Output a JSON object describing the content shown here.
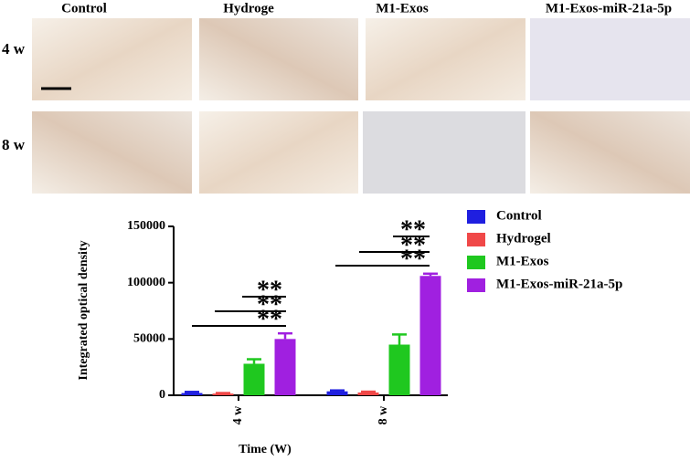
{
  "panels": {
    "columns": [
      "Control",
      "Hydroge",
      "M1-Exos",
      "M1-Exos-miR-21a-5p"
    ],
    "rows": [
      "4 w",
      "8 w"
    ]
  },
  "chart_data": {
    "type": "bar",
    "ylabel": "Integrated optical density",
    "xlabel": "Time (W)",
    "categories": [
      "4 w",
      "8 w"
    ],
    "series": [
      {
        "name": "Control",
        "color": "#1f1fe0",
        "values": [
          2000,
          3500
        ],
        "errors": [
          1000,
          800
        ]
      },
      {
        "name": "Hydrogel",
        "color": "#f04848",
        "values": [
          1500,
          2500
        ],
        "errors": [
          500,
          700
        ]
      },
      {
        "name": "M1-Exos",
        "color": "#1fc81f",
        "values": [
          28000,
          45000
        ],
        "errors": [
          4000,
          9000
        ]
      },
      {
        "name": "M1-Exos-miR-21a-5p",
        "color": "#a020e0",
        "values": [
          50000,
          106000
        ],
        "errors": [
          5000,
          2000
        ]
      }
    ],
    "ylim": [
      0,
      150000
    ],
    "yticks": [
      0,
      50000,
      100000,
      150000
    ],
    "annotations": [
      "**",
      "**",
      "**",
      "**",
      "**",
      "**"
    ]
  }
}
